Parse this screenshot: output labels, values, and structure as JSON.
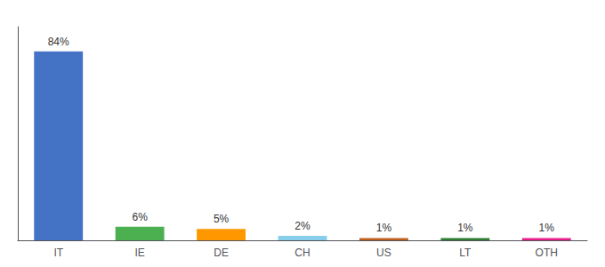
{
  "chart_data": {
    "type": "bar",
    "categories": [
      "IT",
      "IE",
      "DE",
      "CH",
      "US",
      "LT",
      "OTH"
    ],
    "values": [
      84,
      6,
      5,
      2,
      1,
      1,
      1
    ],
    "value_labels": [
      "84%",
      "6%",
      "5%",
      "2%",
      "1%",
      "1%",
      "1%"
    ],
    "colors": [
      "#4472c4",
      "#4caf50",
      "#ff9800",
      "#87ceeb",
      "#c06020",
      "#2e7d32",
      "#e91e8c"
    ],
    "ylim": [
      0,
      95
    ],
    "data_labels": true,
    "tick_labels": "x",
    "grid": false
  }
}
